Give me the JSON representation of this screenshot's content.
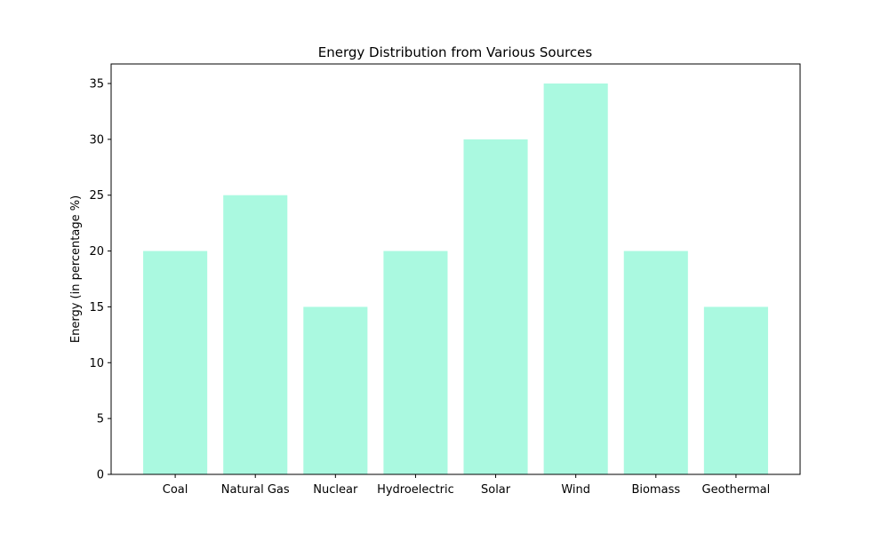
{
  "chart_data": {
    "type": "bar",
    "title": "Energy Distribution from Various Sources",
    "xlabel": "",
    "ylabel": "Energy (in percentage %)",
    "categories": [
      "Coal",
      "Natural Gas",
      "Nuclear",
      "Hydroelectric",
      "Solar",
      "Wind",
      "Biomass",
      "Geothermal"
    ],
    "values": [
      20,
      25,
      15,
      20,
      30,
      35,
      20,
      15
    ],
    "ylim": [
      0,
      36.75
    ],
    "yticks": [
      0,
      5,
      10,
      15,
      20,
      25,
      30,
      35
    ],
    "grid": false,
    "legend": "none",
    "bar_color": "#aaf9e0"
  }
}
